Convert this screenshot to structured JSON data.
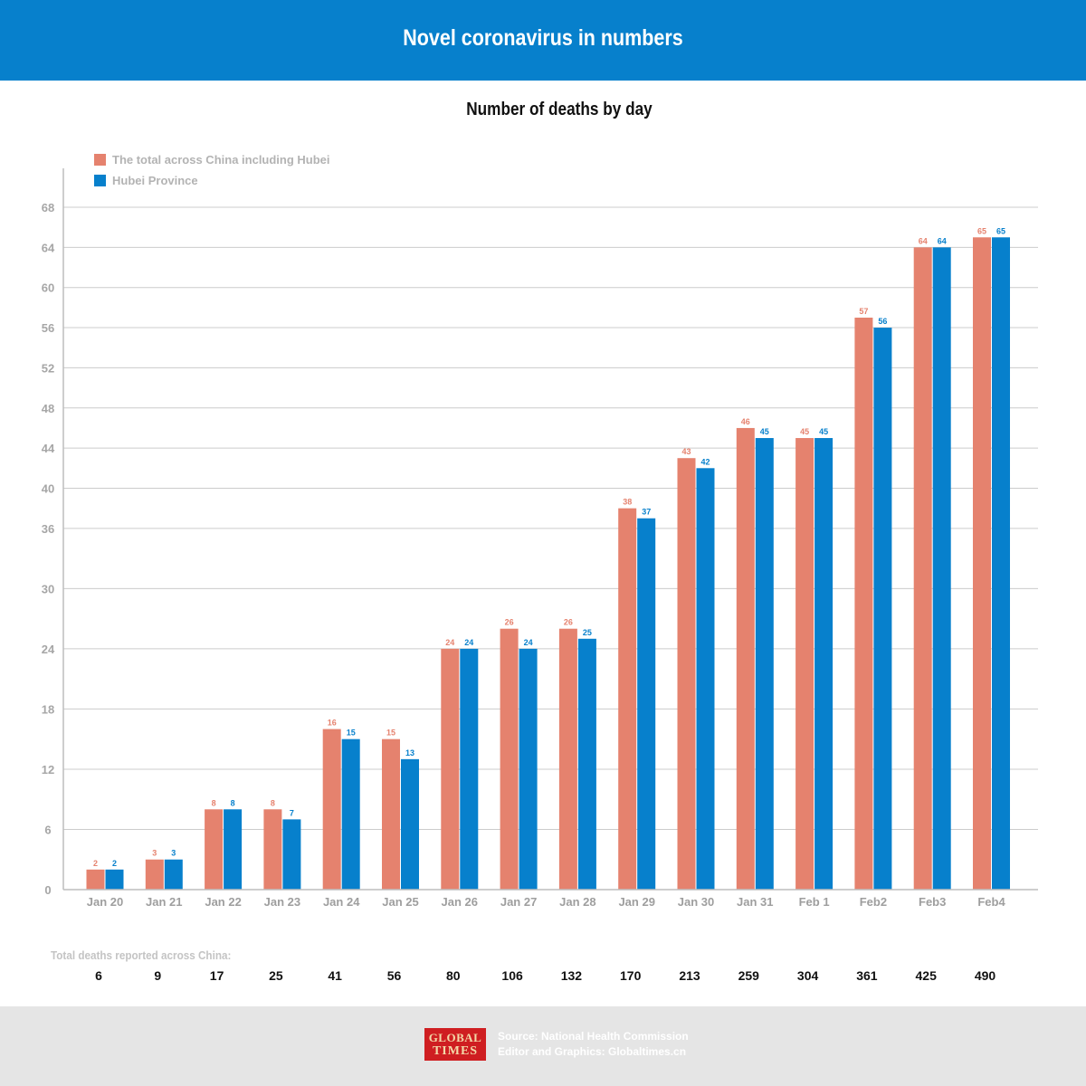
{
  "header": {
    "title": "Novel coronavirus in numbers"
  },
  "chart_data": {
    "type": "bar",
    "title": "Number of deaths by day",
    "categories": [
      "Jan 20",
      "Jan 21",
      "Jan 22",
      "Jan 23",
      "Jan 24",
      "Jan 25",
      "Jan 26",
      "Jan 27",
      "Jan 28",
      "Jan 29",
      "Jan 30",
      "Jan 31",
      "Feb 1",
      "Feb2",
      "Feb3",
      "Feb4"
    ],
    "series": [
      {
        "name": "The total across China including Hubei",
        "color": "#e5826e",
        "values": [
          2,
          3,
          8,
          8,
          16,
          15,
          24,
          26,
          26,
          38,
          43,
          46,
          45,
          57,
          64,
          65
        ]
      },
      {
        "name": "Hubei Province",
        "color": "#0780cc",
        "values": [
          2,
          3,
          8,
          7,
          15,
          13,
          24,
          24,
          25,
          37,
          42,
          45,
          45,
          56,
          64,
          65
        ]
      }
    ],
    "y_ticks": [
      "0",
      "6",
      "12",
      "18",
      "24",
      "30",
      "36",
      "40",
      "44",
      "48",
      "52",
      "56",
      "60",
      "64",
      "68"
    ],
    "ylim": [
      0,
      68
    ],
    "grid": true,
    "legend_position": "top-left"
  },
  "totals": {
    "label": "Total deaths reported across China:",
    "values": [
      "6",
      "9",
      "17",
      "25",
      "41",
      "56",
      "80",
      "106",
      "132",
      "170",
      "213",
      "259",
      "304",
      "361",
      "425",
      "490"
    ]
  },
  "footer": {
    "logo_top": "GLOBAL",
    "logo_bottom": "TIMES",
    "source": "Source: National Health Commission",
    "editor": "Editor and Graphics: Globaltimes.cn"
  }
}
